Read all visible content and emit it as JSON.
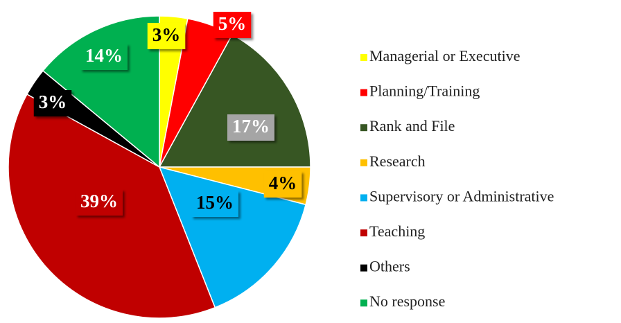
{
  "chart_data": {
    "type": "pie",
    "categories": [
      "Managerial or Executive",
      "Planning/Training",
      "Rank and File",
      "Research",
      "Supervisory or Administrative",
      "Teaching",
      "Others",
      "No response"
    ],
    "values": [
      3,
      5,
      17,
      4,
      15,
      39,
      3,
      14
    ],
    "value_labels": [
      "3%",
      "5%",
      "17%",
      "4%",
      "15%",
      "39%",
      "3%",
      "14%"
    ],
    "colors": [
      "#ffff00",
      "#ff0000",
      "#375623",
      "#ffc000",
      "#00b0f0",
      "#c00000",
      "#000000",
      "#00b050"
    ],
    "legend": "right"
  }
}
